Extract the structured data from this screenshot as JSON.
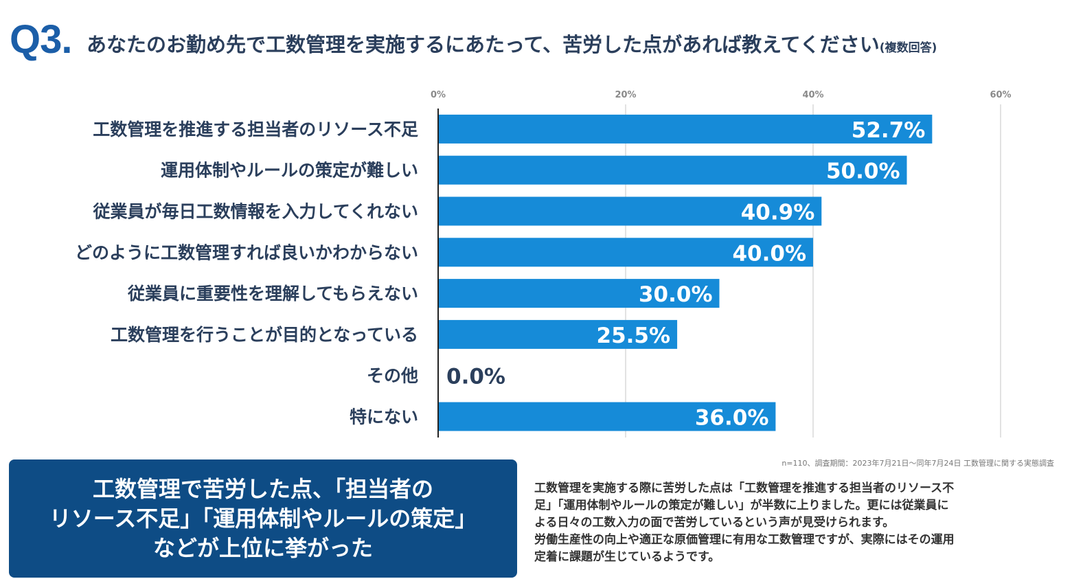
{
  "header": {
    "q_number": "Q3.",
    "question": "あなたのお勤め先で工数管理を実施するにあたって、苦労した点があれば教えてください",
    "note": "(複数回答)"
  },
  "chart_data": {
    "type": "bar",
    "orientation": "horizontal",
    "categories": [
      "工数管理を推進する担当者のリソース不足",
      "運用体制やルールの策定が難しい",
      "従業員が毎日工数情報を入力してくれない",
      "どのように工数管理すれば良いかわからない",
      "従業員に重要性を理解してもらえない",
      "工数管理を行うことが目的となっている",
      "その他",
      "特にない"
    ],
    "values": [
      52.7,
      50.0,
      40.9,
      40.0,
      30.0,
      25.5,
      0.0,
      36.0
    ],
    "value_labels": [
      "52.7%",
      "50.0%",
      "40.9%",
      "40.0%",
      "30.0%",
      "25.5%",
      "0.0%",
      "36.0%"
    ],
    "ticks": [
      0,
      20,
      40,
      60
    ],
    "tick_labels": [
      "0%",
      "20%",
      "40%",
      "60%"
    ],
    "xlim": [
      0,
      60
    ],
    "grid": true,
    "bar_color": "#168bd8",
    "title": "",
    "xlabel": "",
    "ylabel": ""
  },
  "summary": {
    "lines": [
      "工数管理で苦労した点、「担当者の",
      "リソース不足」「運用体制やルールの策定」",
      "などが上位に挙がった"
    ]
  },
  "source_note": "n=110、調査期間：2023年7月21日～同年7月24日 工数管理に関する実態調査",
  "body": {
    "lines": [
      "工数管理を実施する際に苦労した点は「工数管理を推進する担当者のリソース不",
      "足」「運用体制やルールの策定が難しい」が半数に上りました。更には従業員に",
      "よる日々の工数入力の面で苦労しているという声が見受けられます。",
      "労働生産性の向上や適正な原価管理に有用な工数管理ですが、実際にはその運用",
      "定着に課題が生じているようです。"
    ]
  },
  "colors": {
    "accent": "#1b5ea8",
    "bar": "#168bd8",
    "summary_bg": "#0e4c85",
    "label_text": "#2b3f5c"
  }
}
